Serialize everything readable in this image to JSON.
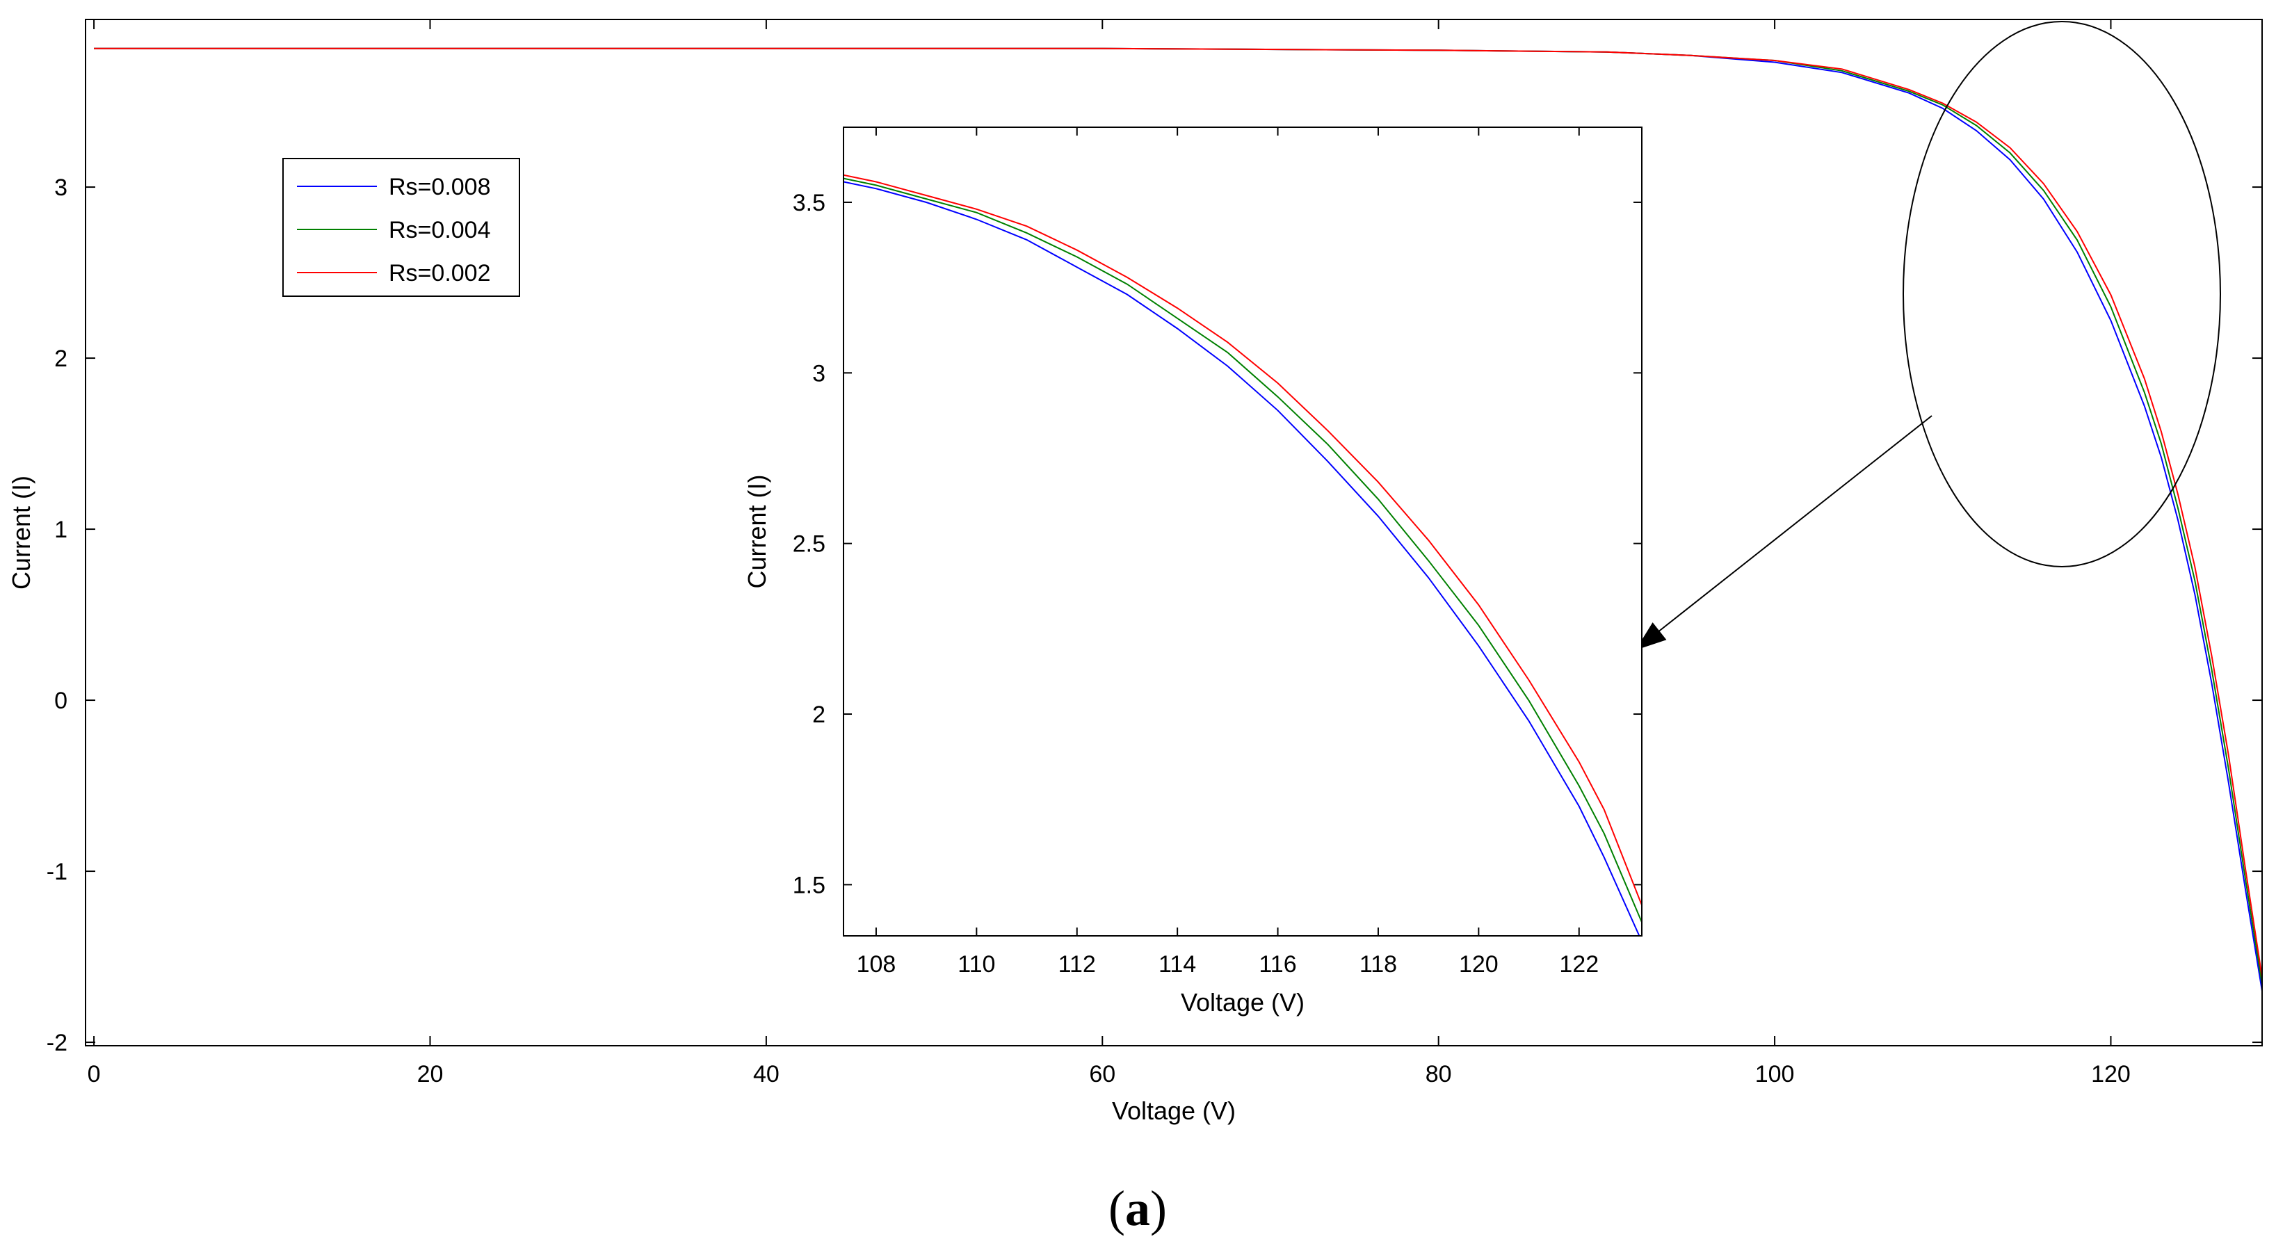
{
  "chart_data": [
    {
      "type": "line",
      "role": "main",
      "xlabel": "Voltage (V)",
      "ylabel": "Current (I)",
      "xlim": [
        -0.5,
        129
      ],
      "ylim": [
        -2.02,
        3.98
      ],
      "xticks": [
        0,
        20,
        40,
        60,
        80,
        100,
        120
      ],
      "yticks": [
        -2,
        -1,
        0,
        1,
        2,
        3
      ],
      "legend_position": "upper-left",
      "series": [
        {
          "name": "Rs=0.008",
          "color": "#0000ff",
          "x": [
            0,
            20,
            40,
            60,
            80,
            90,
            95,
            100,
            104,
            108,
            110,
            112,
            114,
            116,
            118,
            120,
            122,
            123,
            124,
            125,
            126,
            127,
            128,
            129
          ],
          "y": [
            3.81,
            3.81,
            3.81,
            3.81,
            3.8,
            3.79,
            3.77,
            3.73,
            3.67,
            3.55,
            3.46,
            3.33,
            3.16,
            2.93,
            2.62,
            2.22,
            1.72,
            1.42,
            1.05,
            0.62,
            0.1,
            -0.48,
            -1.1,
            -1.7
          ]
        },
        {
          "name": "Rs=0.004",
          "color": "#008000",
          "x": [
            0,
            20,
            40,
            60,
            80,
            90,
            95,
            100,
            104,
            108,
            110,
            112,
            114,
            116,
            118,
            120,
            122,
            123,
            124,
            125,
            126,
            127,
            128,
            129
          ],
          "y": [
            3.81,
            3.81,
            3.81,
            3.81,
            3.8,
            3.79,
            3.77,
            3.74,
            3.68,
            3.56,
            3.48,
            3.36,
            3.2,
            2.98,
            2.69,
            2.3,
            1.8,
            1.5,
            1.12,
            0.7,
            0.18,
            -0.4,
            -1.04,
            -1.66
          ]
        },
        {
          "name": "Rs=0.002",
          "color": "#ff0000",
          "x": [
            0,
            20,
            40,
            60,
            80,
            90,
            95,
            100,
            104,
            108,
            110,
            112,
            114,
            116,
            118,
            120,
            122,
            123,
            124,
            125,
            126,
            127,
            128,
            129
          ],
          "y": [
            3.81,
            3.81,
            3.81,
            3.81,
            3.8,
            3.79,
            3.77,
            3.74,
            3.69,
            3.57,
            3.49,
            3.38,
            3.23,
            3.02,
            2.74,
            2.37,
            1.88,
            1.57,
            1.2,
            0.78,
            0.26,
            -0.32,
            -0.98,
            -1.62
          ]
        }
      ]
    },
    {
      "type": "line",
      "role": "inset",
      "xlabel": "Voltage (V)",
      "ylabel": "Current (I)",
      "xlim": [
        107.35,
        123.25
      ],
      "ylim": [
        1.35,
        3.72
      ],
      "xticks": [
        108,
        110,
        112,
        114,
        116,
        118,
        120,
        122
      ],
      "yticks": [
        1.5,
        2,
        2.5,
        3,
        3.5
      ],
      "series": [
        {
          "name": "Rs=0.008",
          "color": "#0000ff",
          "x": [
            107.35,
            108,
            109,
            110,
            111,
            112,
            113,
            114,
            115,
            116,
            117,
            118,
            119,
            120,
            121,
            122,
            122.5,
            123.2
          ],
          "y": [
            3.56,
            3.54,
            3.5,
            3.45,
            3.39,
            3.31,
            3.23,
            3.13,
            3.02,
            2.89,
            2.74,
            2.58,
            2.4,
            2.2,
            1.98,
            1.73,
            1.58,
            1.35
          ]
        },
        {
          "name": "Rs=0.004",
          "color": "#008000",
          "x": [
            107.35,
            108,
            109,
            110,
            111,
            112,
            113,
            114,
            115,
            116,
            117,
            118,
            119,
            120,
            121,
            122,
            122.5,
            123.25
          ],
          "y": [
            3.57,
            3.55,
            3.51,
            3.47,
            3.41,
            3.34,
            3.26,
            3.16,
            3.06,
            2.93,
            2.79,
            2.63,
            2.45,
            2.26,
            2.04,
            1.79,
            1.65,
            1.39
          ]
        },
        {
          "name": "Rs=0.002",
          "color": "#ff0000",
          "x": [
            107.35,
            108,
            109,
            110,
            111,
            112,
            113,
            114,
            115,
            116,
            117,
            118,
            119,
            120,
            121,
            122,
            122.5,
            123.25
          ],
          "y": [
            3.58,
            3.56,
            3.52,
            3.48,
            3.43,
            3.36,
            3.28,
            3.19,
            3.09,
            2.97,
            2.83,
            2.68,
            2.51,
            2.32,
            2.1,
            1.86,
            1.72,
            1.44
          ]
        }
      ]
    }
  ],
  "caption": "(a)"
}
